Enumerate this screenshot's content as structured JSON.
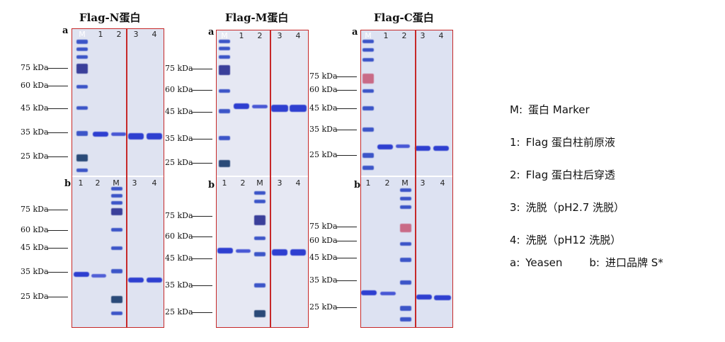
{
  "panels": [
    {
      "title": "Flag-N蛋白"
    },
    {
      "title": "Flag-M蛋白"
    },
    {
      "title": "Flag-C蛋白"
    }
  ],
  "row_labels": {
    "a": "a",
    "b": "b"
  },
  "lanes": {
    "M": "M",
    "l1": "1",
    "l2": "2",
    "l3": "3",
    "l4": "4"
  },
  "markers": {
    "k75": "75 kDa",
    "k60": "60 kDa",
    "k45": "45 kDa",
    "k35": "35 kDa",
    "k25": "25 kDa"
  },
  "legend": {
    "m_key": "M:",
    "m_val": "蛋白 Marker",
    "l1_key": "1:",
    "l1_val": "Flag 蛋白柱前原液",
    "l2_key": "2:",
    "l2_val": "Flag 蛋白柱后穿透",
    "l3_key": "3:",
    "l3_val": "洗脱（pH2.7 洗脱）",
    "l4_key": "4:",
    "l4_val": "洗脱（pH12 洗脱）",
    "a_key": "a:",
    "a_val": "Yeasen",
    "b_key": "b:",
    "b_val": "进口品牌 S*"
  },
  "colors": {
    "band": "#2e3fd0",
    "frame": "#c62828",
    "gel": "#dfe3f1"
  }
}
